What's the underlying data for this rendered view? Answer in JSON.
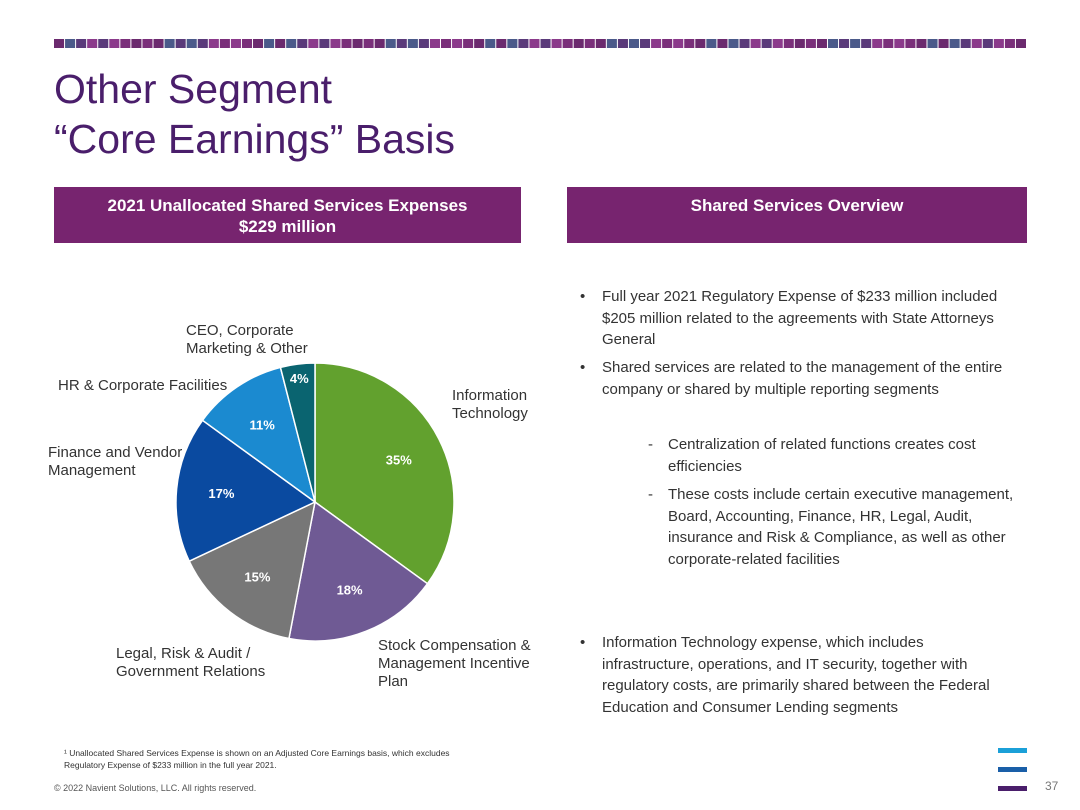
{
  "title": {
    "line1": "Other Segment",
    "line2": "“Core Earnings” Basis"
  },
  "left_panel": {
    "header_line1": "2021 Unallocated Shared Services Expenses",
    "header_line2": "$229 million"
  },
  "right_panel": {
    "header": "Shared Services Overview",
    "bullets": [
      {
        "mark": "•",
        "text": "Full year 2021 Regulatory Expense of $233 million included $205 million related to the agreements with State Attorneys General"
      },
      {
        "mark": "•",
        "text": "Shared services are related to the management of the entire company or shared by multiple reporting segments"
      },
      {
        "mark": "-",
        "text": "Centralization of related functions creates cost efficiencies"
      },
      {
        "mark": "-",
        "text": "These costs include certain executive management, Board, Accounting, Finance, HR, Legal, Audit, insurance and Risk & Compliance, as well as other corporate-related facilities"
      },
      {
        "mark": "•",
        "text": "Information Technology expense, which includes infrastructure, operations, and IT security, together with regulatory costs, are primarily shared between the Federal Education and Consumer Lending segments"
      }
    ]
  },
  "chart_data": {
    "type": "pie",
    "start": "12 o'clock, clockwise",
    "slices": [
      {
        "label_lines": [
          "Information",
          "Technology"
        ],
        "value": 35,
        "value_label": "35%",
        "color": "#62a12e"
      },
      {
        "label_lines": [
          "Stock Compensation &",
          "Management Incentive",
          "Plan"
        ],
        "value": 18,
        "value_label": "18%",
        "color": "#6f5a94"
      },
      {
        "label_lines": [
          "Legal, Risk & Audit /",
          "Government Relations"
        ],
        "value": 15,
        "value_label": "15%",
        "color": "#777777"
      },
      {
        "label_lines": [
          "Finance and Vendor",
          "Management"
        ],
        "value": 17,
        "value_label": "17%",
        "color": "#0a4aa0"
      },
      {
        "label_lines": [
          "HR & Corporate Facilities"
        ],
        "value": 11,
        "value_label": "11%",
        "color": "#1b8ad0"
      },
      {
        "label_lines": [
          "CEO, Corporate",
          "Marketing & Other"
        ],
        "value": 4,
        "value_label": "4%",
        "color": "#0a6470"
      }
    ]
  },
  "footnote": {
    "line1": "¹ Unallocated Shared Services Expense is shown on an Adjusted Core Earnings basis, which excludes",
    "line2": "Regulatory Expense of $233 million in the full year 2021."
  },
  "copyright": "© 2022 Navient Solutions, LLC. All rights reserved.",
  "page_number": "37",
  "colors": {
    "brand_purple": "#77246f",
    "title_purple": "#4a1e6b",
    "logo_light": "#1ba0d8",
    "logo_mid": "#1a5fa8",
    "logo_dark": "#4a1e6b"
  }
}
